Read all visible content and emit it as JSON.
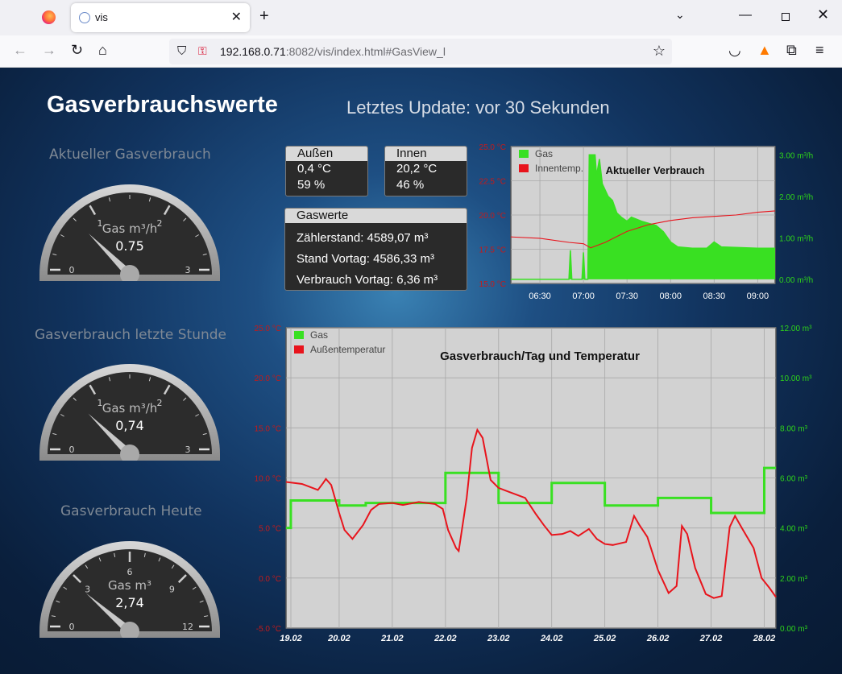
{
  "browser": {
    "tab_title": "vis",
    "url_host": "192.168.0.71",
    "url_port": ":8082",
    "url_path": "/vis/index.html#GasView_l"
  },
  "page": {
    "title": "Gasverbrauchswerte",
    "update": "Letztes Update: vor 30 Sekunden"
  },
  "gauges": [
    {
      "title": "Aktueller Gasverbrauch",
      "unit": "Gas m³/h",
      "value": 0.75,
      "value_text": "0.75",
      "min": 0,
      "max": 3,
      "ticks": [
        "0",
        "1",
        "2",
        "3"
      ]
    },
    {
      "title": "Gasverbrauch letzte Stunde",
      "unit": "Gas m³/h",
      "value": 0.74,
      "value_text": "0,74",
      "min": 0,
      "max": 3,
      "ticks": [
        "0",
        "1",
        "2",
        "3"
      ]
    },
    {
      "title": "Gasverbrauch Heute",
      "unit": "Gas m³",
      "value": 2.74,
      "value_text": "2,74",
      "min": 0,
      "max": 12,
      "ticks": [
        "0",
        "3",
        "6",
        "9",
        "12"
      ]
    }
  ],
  "aussen": {
    "label": "Außen",
    "temp": "0,4 °C",
    "hum": "59 %"
  },
  "innen": {
    "label": "Innen",
    "temp": "20,2 °C",
    "hum": "46 %"
  },
  "gaswerte": {
    "label": "Gaswerte",
    "zaehler": "Zählerstand: 4589,07 m³",
    "vortag": "Stand Vortag: 4586,33 m³",
    "verbrauch": "Verbrauch Vortag: 6,36 m³"
  },
  "chart_data": [
    {
      "type": "area",
      "title": "Aktueller Verbrauch",
      "legend": [
        "Gas",
        "Innentemp."
      ],
      "legend_position": "top-left",
      "colors": {
        "gas": "#39e022",
        "temp": "#e8141c"
      },
      "x_ticks": [
        "06:30",
        "07:00",
        "07:30",
        "08:00",
        "08:30",
        "09:00"
      ],
      "y_left_ticks": [
        "15.0 °C",
        "17.5 °C",
        "20.0 °C",
        "22.5 °C",
        "25.0 °C"
      ],
      "y_left_range": [
        15,
        25
      ],
      "y_right_ticks": [
        "0.00 m³/h",
        "1.00 m³/h",
        "2.00 m³/h",
        "3.00 m³/h"
      ],
      "y_right_range": [
        -0.1,
        3.2
      ],
      "x_range": [
        "06:10",
        "09:12"
      ],
      "series": [
        {
          "name": "Gas",
          "axis": "right",
          "points": [
            [
              "06:10",
              0.0
            ],
            [
              "06:50",
              0.0
            ],
            [
              "06:51",
              0.7
            ],
            [
              "06:52",
              0.0
            ],
            [
              "06:59",
              0.0
            ],
            [
              "07:00",
              0.65
            ],
            [
              "07:01",
              0.0
            ],
            [
              "07:03",
              0.0
            ],
            [
              "07:04",
              3.0
            ],
            [
              "07:08",
              3.0
            ],
            [
              "07:09",
              2.5
            ],
            [
              "07:11",
              2.9
            ],
            [
              "07:13",
              2.3
            ],
            [
              "07:17",
              2.0
            ],
            [
              "07:20",
              1.9
            ],
            [
              "07:23",
              1.6
            ],
            [
              "07:26",
              1.5
            ],
            [
              "07:30",
              1.4
            ],
            [
              "07:33",
              1.5
            ],
            [
              "07:40",
              1.4
            ],
            [
              "07:45",
              1.35
            ],
            [
              "07:50",
              1.3
            ],
            [
              "07:55",
              1.15
            ],
            [
              "08:00",
              0.9
            ],
            [
              "08:05",
              0.78
            ],
            [
              "08:15",
              0.75
            ],
            [
              "08:25",
              0.75
            ],
            [
              "08:30",
              0.9
            ],
            [
              "08:35",
              0.78
            ],
            [
              "09:00",
              0.75
            ],
            [
              "09:12",
              0.75
            ]
          ]
        },
        {
          "name": "Innentemp.",
          "axis": "left",
          "points": [
            [
              "06:10",
              18.4
            ],
            [
              "06:30",
              18.3
            ],
            [
              "06:50",
              18.0
            ],
            [
              "07:00",
              17.9
            ],
            [
              "07:05",
              17.6
            ],
            [
              "07:15",
              18.0
            ],
            [
              "07:30",
              18.8
            ],
            [
              "07:45",
              19.3
            ],
            [
              "08:00",
              19.6
            ],
            [
              "08:15",
              19.8
            ],
            [
              "08:30",
              19.9
            ],
            [
              "08:45",
              20.0
            ],
            [
              "09:00",
              20.2
            ],
            [
              "09:12",
              20.3
            ]
          ]
        }
      ]
    },
    {
      "type": "line",
      "title": "Gasverbrauch/Tag und Temperatur",
      "legend": [
        "Gas",
        "Außentemperatur"
      ],
      "legend_position": "top-left",
      "colors": {
        "gas": "#39e022",
        "temp": "#e8141c"
      },
      "x_ticks": [
        "19.02",
        "20.02",
        "21.02",
        "22.02",
        "23.02",
        "24.02",
        "25.02",
        "26.02",
        "27.02",
        "28.02"
      ],
      "x_range": [
        0,
        9.22
      ],
      "y_left_ticks": [
        "-5.0 °C",
        "0.0 °C",
        "5.0 °C",
        "10.0 °C",
        "15.0 °C",
        "20.0 °C",
        "25.0 °C"
      ],
      "y_left_range": [
        -5,
        25
      ],
      "y_right_ticks": [
        "0.00 m³",
        "2.00 m³",
        "4.00 m³",
        "6.00 m³",
        "8.00 m³",
        "10.00 m³",
        "12.00 m³"
      ],
      "y_right_range": [
        0,
        12
      ],
      "series": [
        {
          "name": "Gas",
          "axis": "right",
          "step": true,
          "points": [
            [
              0,
              4.0
            ],
            [
              0.09,
              5.1
            ],
            [
              1.0,
              4.9
            ],
            [
              1.5,
              5.0
            ],
            [
              3.0,
              6.2
            ],
            [
              4.0,
              5.0
            ],
            [
              5.0,
              5.8
            ],
            [
              6.0,
              4.9
            ],
            [
              7.0,
              5.2
            ],
            [
              8.0,
              4.6
            ],
            [
              9.0,
              6.4
            ],
            [
              9.22,
              6.4
            ]
          ]
        },
        {
          "name": "Außentemperatur",
          "axis": "left",
          "points": [
            [
              0,
              9.6
            ],
            [
              0.3,
              9.4
            ],
            [
              0.6,
              8.8
            ],
            [
              0.7,
              9.5
            ],
            [
              0.75,
              9.9
            ],
            [
              0.85,
              9.3
            ],
            [
              1.0,
              6.5
            ],
            [
              1.1,
              4.8
            ],
            [
              1.25,
              3.9
            ],
            [
              1.45,
              5.3
            ],
            [
              1.6,
              6.8
            ],
            [
              1.75,
              7.4
            ],
            [
              2.0,
              7.5
            ],
            [
              2.2,
              7.3
            ],
            [
              2.5,
              7.6
            ],
            [
              2.8,
              7.4
            ],
            [
              2.95,
              6.9
            ],
            [
              3.05,
              4.8
            ],
            [
              3.2,
              3.0
            ],
            [
              3.25,
              2.7
            ],
            [
              3.4,
              8.0
            ],
            [
              3.5,
              13.0
            ],
            [
              3.6,
              14.8
            ],
            [
              3.7,
              14.0
            ],
            [
              3.85,
              9.8
            ],
            [
              4.0,
              9.0
            ],
            [
              4.2,
              8.6
            ],
            [
              4.5,
              8.0
            ],
            [
              4.7,
              6.4
            ],
            [
              4.85,
              5.3
            ],
            [
              5.0,
              4.3
            ],
            [
              5.2,
              4.4
            ],
            [
              5.35,
              4.7
            ],
            [
              5.5,
              4.2
            ],
            [
              5.7,
              4.9
            ],
            [
              5.85,
              3.9
            ],
            [
              6.0,
              3.4
            ],
            [
              6.15,
              3.3
            ],
            [
              6.4,
              3.6
            ],
            [
              6.55,
              6.2
            ],
            [
              6.65,
              5.3
            ],
            [
              6.8,
              4.1
            ],
            [
              7.0,
              0.8
            ],
            [
              7.2,
              -1.5
            ],
            [
              7.35,
              -0.8
            ],
            [
              7.45,
              5.2
            ],
            [
              7.55,
              4.4
            ],
            [
              7.7,
              1.0
            ],
            [
              7.9,
              -1.6
            ],
            [
              8.05,
              -2.0
            ],
            [
              8.2,
              -1.8
            ],
            [
              8.35,
              5.1
            ],
            [
              8.45,
              6.2
            ],
            [
              8.6,
              4.8
            ],
            [
              8.8,
              3.0
            ],
            [
              8.95,
              0.0
            ],
            [
              9.1,
              -1.0
            ],
            [
              9.22,
              -1.9
            ]
          ]
        }
      ]
    }
  ]
}
